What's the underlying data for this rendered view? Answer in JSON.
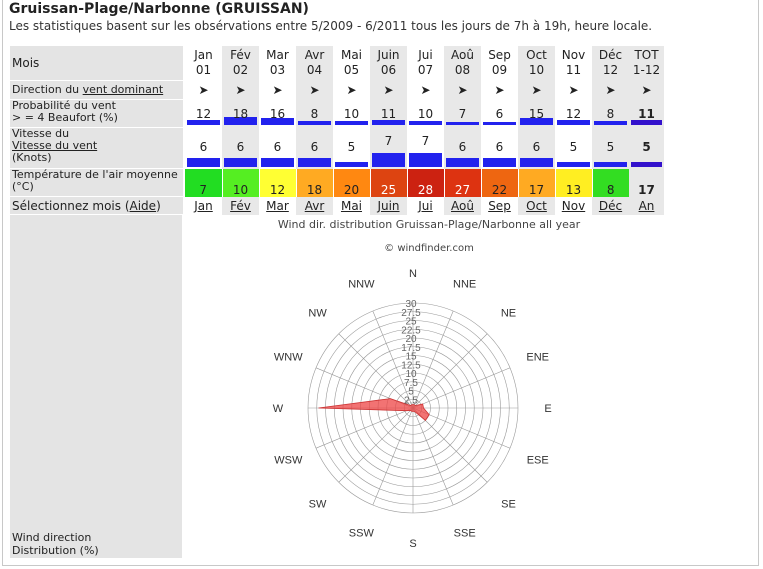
{
  "header": {
    "title": "Gruissan-Plage/Narbonne (GRUISSAN)",
    "subtitle": "Les statistiques basent sur les obsérvations entre 5/2009 - 6/2011 tous les jours de 7h à 19h, heure locale."
  },
  "labels": {
    "mois": "Mois",
    "direction_prefix": "Direction du ",
    "direction_link": "vent dominant",
    "prob_line1": "Probabilité du vent",
    "prob_line2": "> = 4 Beaufort (%)",
    "vitesse_line1": "Vitesse du",
    "vitesse_link": "Vitesse du vent",
    "vitesse_line3": "(Knots)",
    "temp_line1": "Température de l'air moyenne",
    "temp_line2": "(°C)",
    "select_prefix": "Sélectionnez mois (",
    "select_link": "Aide",
    "select_suffix": ")",
    "rose_caption_1": "Wind direction",
    "rose_caption_2": "Distribution (%)"
  },
  "months": [
    {
      "name": "Jan",
      "num": "01",
      "dir": "➤",
      "prob": 12,
      "speed": 6,
      "temp": 7,
      "temp_color": "#22dd22",
      "link": "Jan"
    },
    {
      "name": "Fév",
      "num": "02",
      "dir": "➤",
      "prob": 18,
      "speed": 6,
      "temp": 10,
      "temp_color": "#55ee22",
      "link": "Fév"
    },
    {
      "name": "Mar",
      "num": "03",
      "dir": "➤",
      "prob": 16,
      "speed": 6,
      "temp": 12,
      "temp_color": "#ffff33",
      "link": "Mar"
    },
    {
      "name": "Avr",
      "num": "04",
      "dir": "➤",
      "prob": 8,
      "speed": 6,
      "temp": 18,
      "temp_color": "#ffaa22",
      "link": "Avr"
    },
    {
      "name": "Mai",
      "num": "05",
      "dir": "➤",
      "prob": 10,
      "speed": 5,
      "temp": 20,
      "temp_color": "#ff8811",
      "link": "Mai"
    },
    {
      "name": "Juin",
      "num": "06",
      "dir": "➤",
      "prob": 11,
      "speed": 7,
      "temp": 25,
      "temp_color": "#dd4411",
      "link": "Juin"
    },
    {
      "name": "Jui",
      "num": "07",
      "dir": "➤",
      "prob": 10,
      "speed": 7,
      "temp": 28,
      "temp_color": "#cc2211",
      "link": "Jui"
    },
    {
      "name": "Aoû",
      "num": "08",
      "dir": "➤",
      "prob": 7,
      "speed": 6,
      "temp": 27,
      "temp_color": "#dd3311",
      "link": "Aoû"
    },
    {
      "name": "Sep",
      "num": "09",
      "dir": "➤",
      "prob": 6,
      "speed": 6,
      "temp": 22,
      "temp_color": "#ee6611",
      "link": "Sep"
    },
    {
      "name": "Oct",
      "num": "10",
      "dir": "➤",
      "prob": 15,
      "speed": 6,
      "temp": 17,
      "temp_color": "#ffaa22",
      "link": "Oct"
    },
    {
      "name": "Nov",
      "num": "11",
      "dir": "➤",
      "prob": 12,
      "speed": 5,
      "temp": 13,
      "temp_color": "#ffee22",
      "link": "Nov"
    },
    {
      "name": "Déc",
      "num": "12",
      "dir": "➤",
      "prob": 8,
      "speed": 5,
      "temp": 8,
      "temp_color": "#33dd22",
      "link": "Déc"
    }
  ],
  "total": {
    "name": "TOT",
    "num": "1-12",
    "dir": "➤",
    "prob": 11,
    "speed": 5,
    "temp": 17,
    "link": "An"
  },
  "colors": {
    "bar": "#2222ee",
    "bar_total": "#3311cc",
    "rose_fill": "#ee4444",
    "grid": "#999999"
  },
  "rose": {
    "title": "Wind dir. distribution Gruissan-Plage/Narbonne all year",
    "copyright": "© windfinder.com",
    "directions": [
      "N",
      "NNE",
      "NE",
      "ENE",
      "E",
      "ESE",
      "SE",
      "SSE",
      "S",
      "SSW",
      "SW",
      "WSW",
      "W",
      "WNW",
      "NW",
      "NNW"
    ],
    "ring_labels": [
      "2.5",
      "5",
      "7.5",
      "10",
      "12.5",
      "15",
      "17.5",
      "20",
      "22.5",
      "25",
      "27.5",
      "30"
    ],
    "distribution": [
      1,
      1,
      1,
      3,
      3,
      5,
      5,
      1,
      1,
      1,
      1,
      2,
      27,
      7,
      1,
      1
    ]
  }
}
